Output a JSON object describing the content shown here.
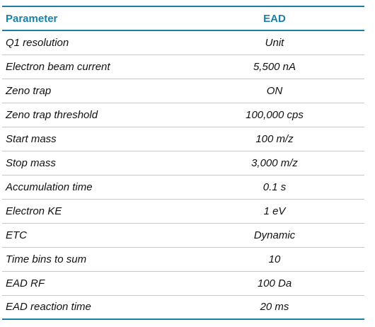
{
  "table": {
    "headers": [
      "Parameter",
      "EAD"
    ],
    "rows": [
      {
        "parameter": "Q1 resolution",
        "value": "Unit"
      },
      {
        "parameter": "Electron beam current",
        "value": "5,500 nA"
      },
      {
        "parameter": "Zeno trap",
        "value": "ON"
      },
      {
        "parameter": "Zeno trap threshold",
        "value": "100,000 cps"
      },
      {
        "parameter": "Start mass",
        "value": "100 m/z"
      },
      {
        "parameter": "Stop mass",
        "value": "3,000 m/z"
      },
      {
        "parameter": "Accumulation time",
        "value": "0.1 s"
      },
      {
        "parameter": "Electron KE",
        "value": "1 eV"
      },
      {
        "parameter": "ETC",
        "value": "Dynamic"
      },
      {
        "parameter": "Time bins to sum",
        "value": "10"
      },
      {
        "parameter": "EAD RF",
        "value": "100 Da"
      },
      {
        "parameter": "EAD reaction time",
        "value": "20 ms"
      }
    ]
  },
  "colors": {
    "header_text": "#1c7fa6",
    "rule": "#1c7fa6",
    "row_divider": "#c9c9c9"
  }
}
